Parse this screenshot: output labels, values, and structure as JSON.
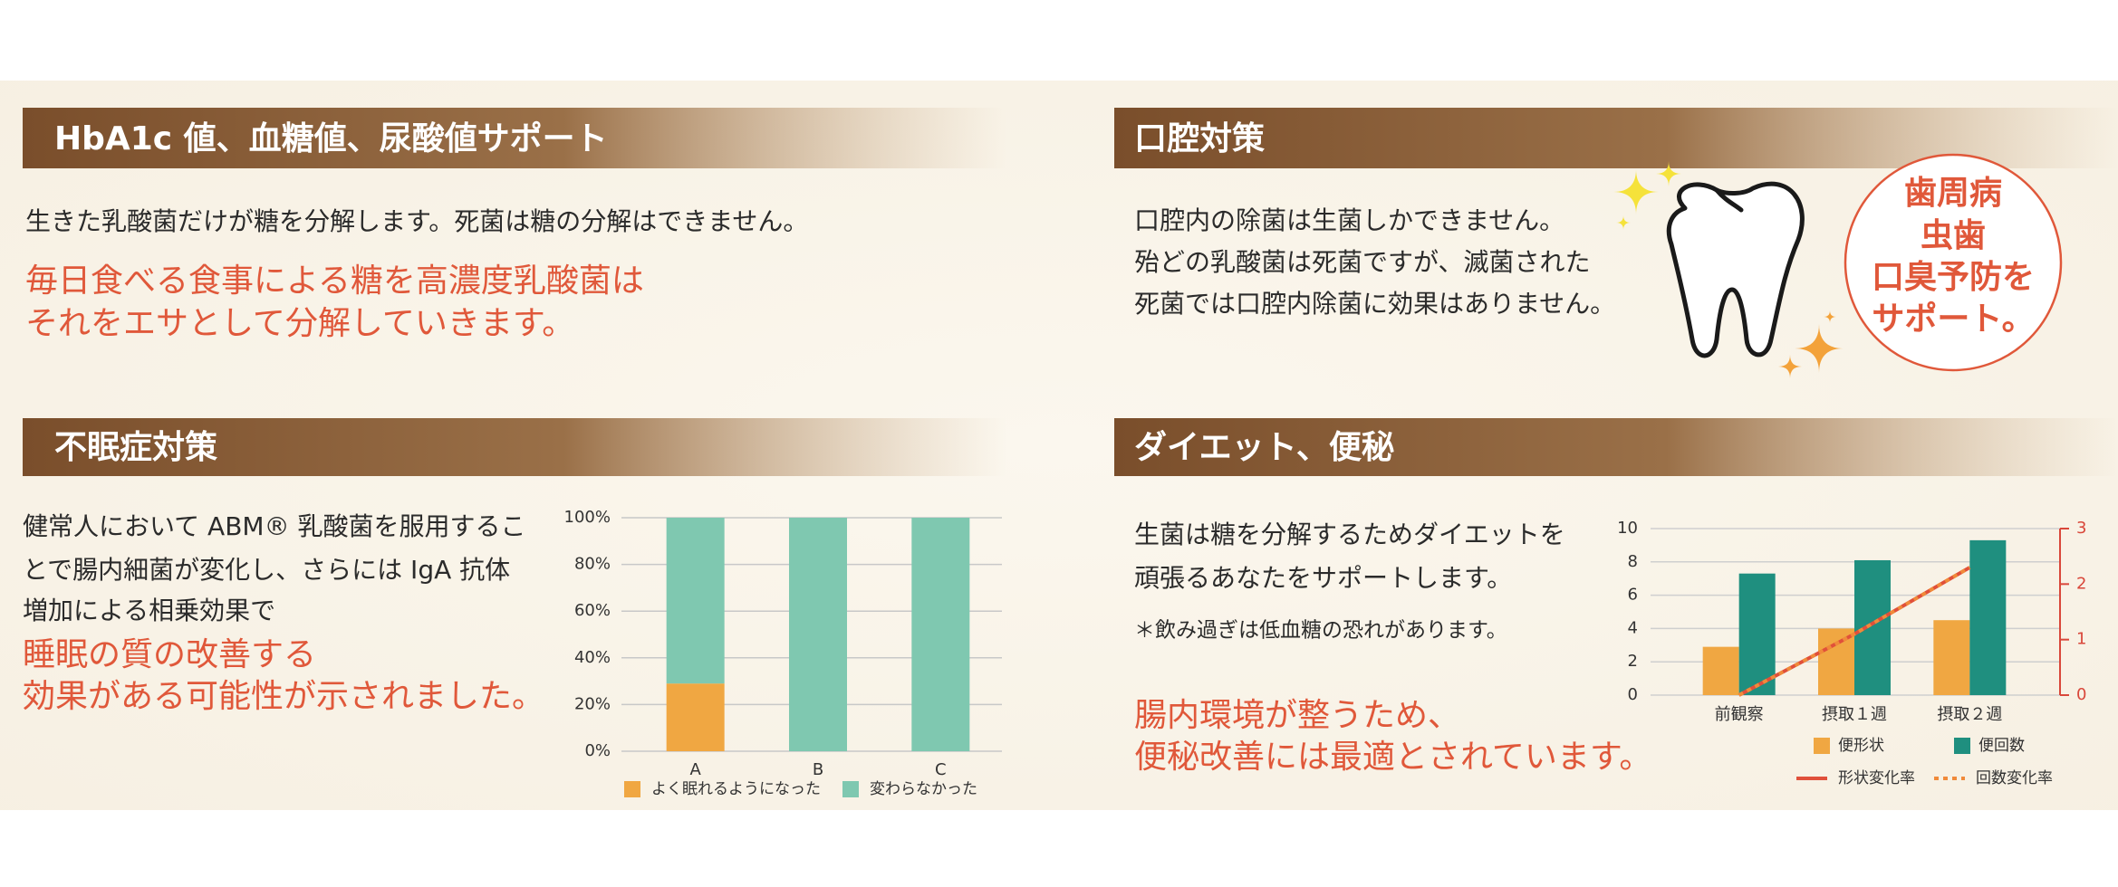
{
  "sections": [
    {
      "heading": "HbA1c 値、血糖値、尿酸値サポート",
      "body": [
        "生きた乳酸菌だけが糖を分解します。死菌は糖の分解はできません。"
      ],
      "highlight": [
        "毎日食べる食事による糖を高濃度乳酸菌は",
        "それをエサとして分解していきます。"
      ]
    },
    {
      "heading": "口腔対策",
      "body": [
        "口腔内の除菌は生菌しかできません。",
        "殆どの乳酸菌は死菌ですが、滅菌された",
        "死菌では口腔内除菌に効果はありません。"
      ],
      "badge": [
        "歯周病",
        "虫歯",
        "口臭予防を",
        "サポート。"
      ]
    },
    {
      "heading": "不眠症対策",
      "body": [
        "健常人において ABM® 乳酸菌を服用するこ",
        "とで腸内細菌が変化し、さらには IgA 抗体",
        "増加による相乗効果で"
      ],
      "highlight": [
        "睡眠の質の改善する",
        "効果がある可能性が示されました。"
      ],
      "chart": {
        "type": "stacked_bar",
        "categories": [
          "A",
          "B",
          "C"
        ],
        "series": [
          {
            "name": "よく眠れるようになった",
            "color": "#f0a742",
            "values": [
              29,
              0,
              0
            ]
          },
          {
            "name": "変わらなかった",
            "color": "#7fc8b0",
            "values": [
              71,
              100,
              100
            ]
          }
        ],
        "ylim": [
          0,
          100
        ],
        "yticks": [
          {
            "value": 0,
            "label": "0%"
          },
          {
            "value": 20,
            "label": "20%"
          },
          {
            "value": 40,
            "label": "40%"
          },
          {
            "value": 60,
            "label": "60%"
          },
          {
            "value": 80,
            "label": "80%"
          },
          {
            "value": 100,
            "label": "100%"
          }
        ],
        "grid": true,
        "legend": "bottom"
      }
    },
    {
      "heading": "ダイエット、便秘",
      "body": [
        "生菌は糖を分解するためダイエットを",
        "頑張るあなたをサポートします。"
      ],
      "note": "＊飲み過ぎは低血糖の恐れがあります。",
      "highlight": [
        "腸内環境が整うため、",
        "便秘改善には最適とされています。"
      ],
      "chart": {
        "type": "bar_line",
        "categories": [
          "前観察",
          "摂取１週",
          "摂取２週"
        ],
        "series": [
          {
            "name": "便形状",
            "color": "#f0a742",
            "kind": "bar",
            "values": [
              2.9,
              4.0,
              4.5
            ]
          },
          {
            "name": "便回数",
            "color": "#1f8f7f",
            "kind": "bar",
            "values": [
              7.3,
              8.1,
              9.3
            ]
          },
          {
            "name": "形状変化率",
            "color": "#e0503a",
            "kind": "line",
            "style": "solid",
            "axis": "y2",
            "values": [
              0,
              1.1,
              2.3
            ]
          },
          {
            "name": "回数変化率",
            "color": "#f08a3a",
            "kind": "line",
            "style": "dotted",
            "axis": "y2",
            "values": [
              0,
              1.1,
              2.3
            ]
          }
        ],
        "ylim": [
          0,
          10
        ],
        "yticks": [
          0,
          2,
          4,
          6,
          8,
          10
        ],
        "y2lim": [
          0,
          3
        ],
        "y2ticks": [
          0,
          1,
          2,
          3
        ],
        "y2color": "#d9473a",
        "grid": true,
        "legend": "bottom"
      }
    }
  ]
}
